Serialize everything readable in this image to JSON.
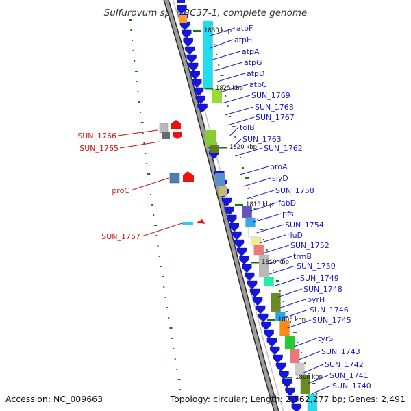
{
  "title": "Sulfurovum sp. NBC37-1, complete genome",
  "footer": {
    "accession": "Accession: NC_009663",
    "summary": "Topology: circular; Length: 2,562,277 bp; Genes: 2,491"
  },
  "colors": {
    "forward_label": "#1a1acc",
    "reverse_label": "#cc1111",
    "cds_forward": "#1515dd",
    "cds_reverse": "#ee1111",
    "backbone": "#888888",
    "tick": "#117711"
  },
  "scale_marks": [
    "1830 kbp",
    "1825 kbp",
    "1820 kbp",
    "1815 kbp",
    "1810 kbp",
    "1805 kbp",
    "1800 kbp"
  ],
  "genes_forward": [
    "atpF",
    "atpH",
    "atpA",
    "atpG",
    "atpD",
    "atpC",
    "SUN_1769",
    "SUN_1768",
    "SUN_1767",
    "tolB",
    "SUN_1763",
    "SUN_1762",
    "proA",
    "slyD",
    "SUN_1758",
    "fabD",
    "pfs",
    "SUN_1754",
    "rluD",
    "SUN_1752",
    "trmB",
    "SUN_1750",
    "SUN_1749",
    "SUN_1748",
    "pyrH",
    "SUN_1746",
    "SUN_1745",
    "tyrS",
    "SUN_1743",
    "SUN_1742",
    "SUN_1741",
    "SUN_1740"
  ],
  "genes_reverse": [
    "SUN_1766",
    "SUN_1765",
    "proC",
    "SUN_1757"
  ]
}
